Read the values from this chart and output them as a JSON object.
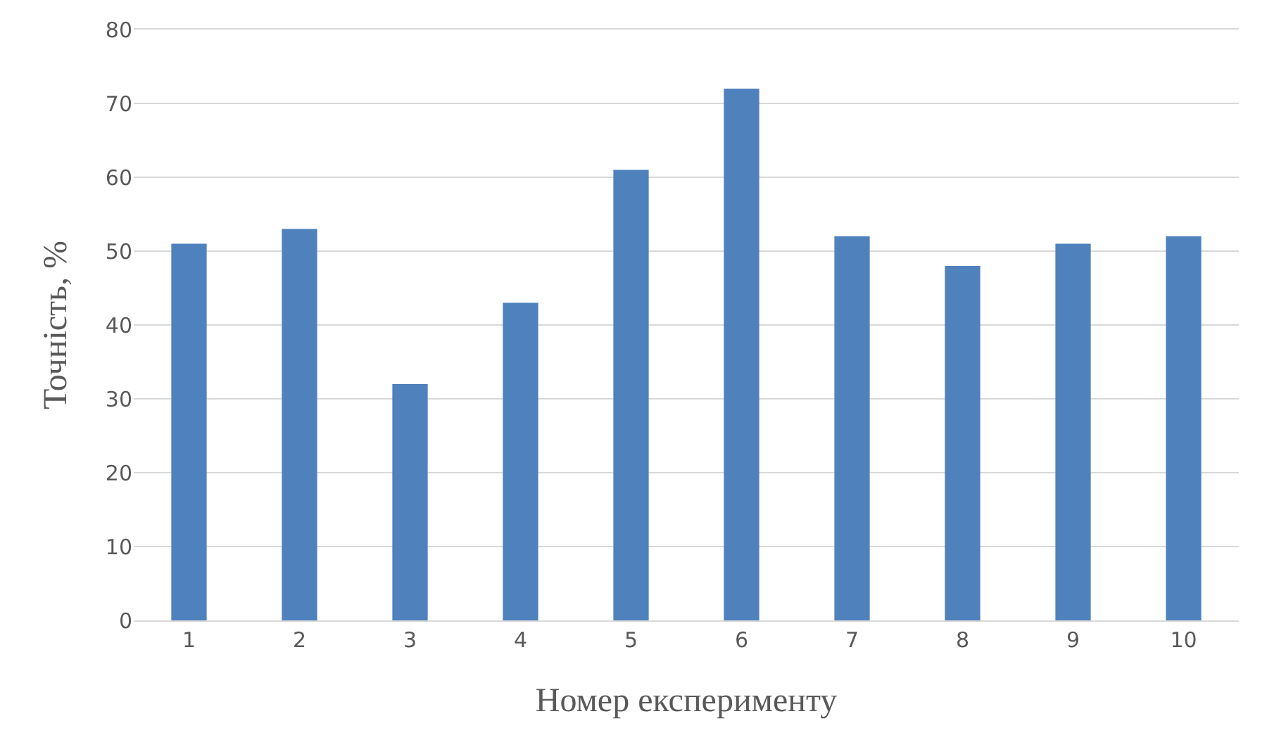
{
  "chart_data": {
    "type": "bar",
    "xlabel": "Номер експерименту",
    "ylabel": "Точність, %",
    "categories": [
      "1",
      "2",
      "3",
      "4",
      "5",
      "6",
      "7",
      "8",
      "9",
      "10"
    ],
    "values": [
      51,
      53,
      32,
      43,
      61,
      72,
      52,
      48,
      51,
      52
    ],
    "color": "#4f81bd",
    "ylim": [
      0,
      80
    ],
    "yticks": [
      0,
      10,
      20,
      30,
      40,
      50,
      60,
      70,
      80
    ],
    "grid": "y"
  }
}
